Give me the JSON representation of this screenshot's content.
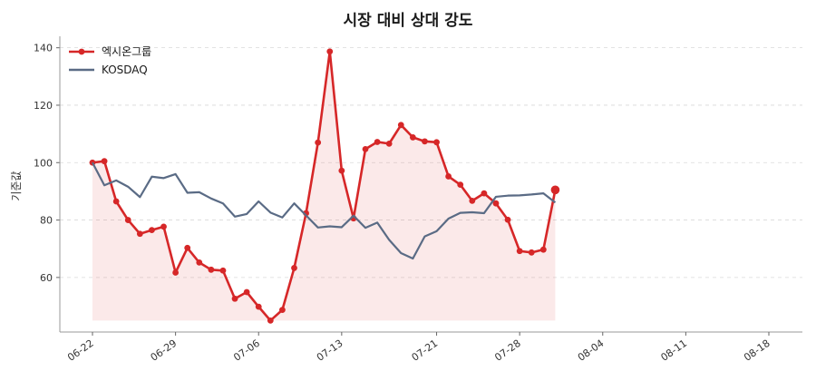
{
  "chart_data": {
    "type": "line",
    "title": "시장 대비 상대 강도",
    "xlabel": "",
    "ylabel": "기준값",
    "ylim": [
      41,
      144
    ],
    "yticks": [
      60,
      80,
      100,
      120,
      140
    ],
    "grid": true,
    "legend_position": "top-left",
    "x": [
      "06-22",
      "06-23",
      "06-24",
      "06-25",
      "06-26",
      "06-27",
      "06-28",
      "06-29",
      "06-30",
      "07-01",
      "07-02",
      "07-03",
      "07-04",
      "07-05",
      "07-06",
      "07-07",
      "07-08",
      "07-09",
      "07-10",
      "07-11",
      "07-12",
      "07-13",
      "07-14",
      "07-15",
      "07-16",
      "07-17",
      "07-18",
      "07-19",
      "07-20",
      "07-21",
      "07-22",
      "07-23",
      "07-24",
      "07-25",
      "07-26",
      "07-27",
      "07-28",
      "07-29",
      "07-30",
      "07-31",
      "08-01",
      "08-02",
      "08-03",
      "08-04",
      "08-05",
      "08-06",
      "08-07",
      "08-08",
      "08-09",
      "08-10",
      "08-11",
      "08-12",
      "08-13",
      "08-14",
      "08-15",
      "08-16",
      "08-17",
      "08-18"
    ],
    "xticks": [
      "06-22",
      "06-29",
      "07-06",
      "07-13",
      "07-21",
      "07-28",
      "08-04",
      "08-11",
      "08-18"
    ],
    "series": [
      {
        "name": "엑시온그룹",
        "color": "#d62728",
        "marker": true,
        "fill": true,
        "points": [
          [
            "06-22",
            100
          ],
          [
            "06-23",
            100.5
          ],
          [
            "06-24",
            86.5
          ],
          [
            "06-25",
            80
          ],
          [
            "06-26",
            75.2
          ],
          [
            "06-27",
            76.5
          ],
          [
            "06-28",
            77.7
          ],
          [
            "06-29",
            61.7
          ],
          [
            "06-30",
            70.3
          ],
          [
            "07-01",
            65.2
          ],
          [
            "07-02",
            62.7
          ],
          [
            "07-03",
            62.4
          ],
          [
            "07-04",
            52.6
          ],
          [
            "07-05",
            54.9
          ],
          [
            "07-06",
            49.8
          ],
          [
            "07-07",
            45
          ],
          [
            "07-08",
            48.7
          ],
          [
            "07-09",
            63.3
          ],
          [
            "07-10",
            82.4
          ],
          [
            "07-11",
            107
          ],
          [
            "07-12",
            138.7
          ],
          [
            "07-13",
            97.2
          ],
          [
            "07-14",
            80.6
          ],
          [
            "07-15",
            104.7
          ],
          [
            "07-16",
            107.2
          ],
          [
            "07-17",
            106.6
          ],
          [
            "07-18",
            113.1
          ],
          [
            "07-19",
            108.8
          ],
          [
            "07-20",
            107.4
          ],
          [
            "07-21",
            107.1
          ],
          [
            "07-22",
            95.2
          ],
          [
            "07-23",
            92.3
          ],
          [
            "07-24",
            86.7
          ],
          [
            "07-25",
            89.3
          ],
          [
            "07-26",
            85.8
          ],
          [
            "07-27",
            80.1
          ],
          [
            "07-28",
            69.2
          ],
          [
            "07-29",
            68.7
          ],
          [
            "07-30",
            69.7
          ],
          [
            "07-31",
            90.5
          ]
        ]
      },
      {
        "name": "KOSDAQ",
        "color": "#5a6b85",
        "marker": false,
        "fill": false,
        "points": [
          [
            "06-22",
            100
          ],
          [
            "06-23",
            92.1
          ],
          [
            "06-24",
            93.8
          ],
          [
            "06-25",
            91.6
          ],
          [
            "06-26",
            88
          ],
          [
            "06-27",
            95.1
          ],
          [
            "06-28",
            94.6
          ],
          [
            "06-29",
            96
          ],
          [
            "06-30",
            89.5
          ],
          [
            "07-01",
            89.7
          ],
          [
            "07-02",
            87.5
          ],
          [
            "07-03",
            85.8
          ],
          [
            "07-04",
            81.2
          ],
          [
            "07-05",
            82.1
          ],
          [
            "07-06",
            86.5
          ],
          [
            "07-07",
            82.6
          ],
          [
            "07-08",
            80.9
          ],
          [
            "07-09",
            85.8
          ],
          [
            "07-10",
            81.6
          ],
          [
            "07-11",
            77.4
          ],
          [
            "07-12",
            77.8
          ],
          [
            "07-13",
            77.5
          ],
          [
            "07-14",
            81.5
          ],
          [
            "07-15",
            77.3
          ],
          [
            "07-16",
            79.1
          ],
          [
            "07-17",
            73.1
          ],
          [
            "07-18",
            68.5
          ],
          [
            "07-19",
            66.6
          ],
          [
            "07-20",
            74.3
          ],
          [
            "07-21",
            76.1
          ],
          [
            "07-22",
            80.5
          ],
          [
            "07-23",
            82.5
          ],
          [
            "07-24",
            82.7
          ],
          [
            "07-25",
            82.4
          ],
          [
            "07-26",
            88.1
          ],
          [
            "07-27",
            88.5
          ],
          [
            "07-28",
            88.6
          ],
          [
            "07-29",
            88.9
          ],
          [
            "07-30",
            89.3
          ],
          [
            "07-31",
            86.1
          ]
        ]
      }
    ]
  }
}
